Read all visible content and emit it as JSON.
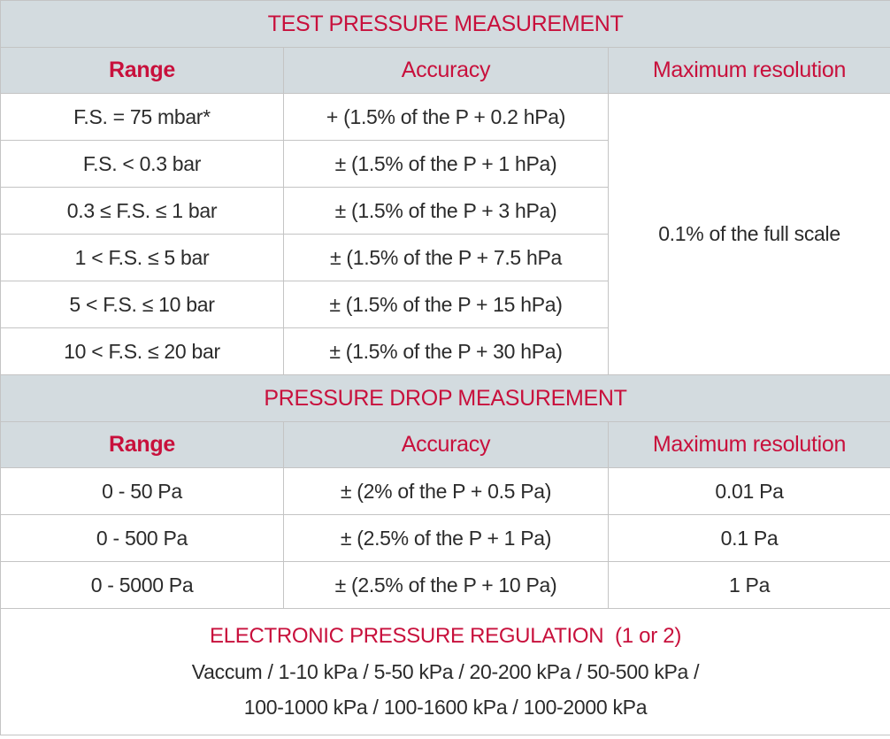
{
  "sections": [
    {
      "title": "TEST PRESSURE MEASUREMENT",
      "headers": [
        "Range",
        "Accuracy",
        "Maximum resolution"
      ],
      "rows": [
        [
          "F.S. = 75 mbar*",
          "+ (1.5% of the P + 0.2 hPa)"
        ],
        [
          "F.S. < 0.3 bar",
          "± (1.5% of the P + 1 hPa)"
        ],
        [
          "0.3 ≤ F.S. ≤ 1 bar",
          "± (1.5% of the P + 3 hPa)"
        ],
        [
          "1 < F.S. ≤ 5 bar",
          "± (1.5% of the P + 7.5 hPa"
        ],
        [
          "5 < F.S. ≤ 10 bar",
          "± (1.5% of the P + 15 hPa)"
        ],
        [
          "10 < F.S. ≤ 20 bar",
          "± (1.5% of the P + 30 hPa)"
        ]
      ],
      "resolution": "0.1% of the full scale"
    },
    {
      "title": "PRESSURE DROP MEASUREMENT",
      "headers": [
        "Range",
        "Accuracy",
        "Maximum resolution"
      ],
      "rows": [
        [
          "0 - 50 Pa",
          "± (2% of the P + 0.5 Pa)",
          "0.01 Pa"
        ],
        [
          "0 - 500 Pa",
          "± (2.5% of the P + 1 Pa)",
          "0.1 Pa"
        ],
        [
          "0 - 5000 Pa",
          "± (2.5% of the P + 10 Pa)",
          "1 Pa"
        ]
      ]
    }
  ],
  "footer": {
    "title": "ELECTRONIC PRESSURE REGULATION  (1 or 2)",
    "lines": [
      "Vaccum / 1-10 kPa / 5-50 kPa / 20-200 kPa / 50-500 kPa /",
      "100-1000 kPa / 100-1600 kPa / 100-2000 kPa"
    ]
  }
}
